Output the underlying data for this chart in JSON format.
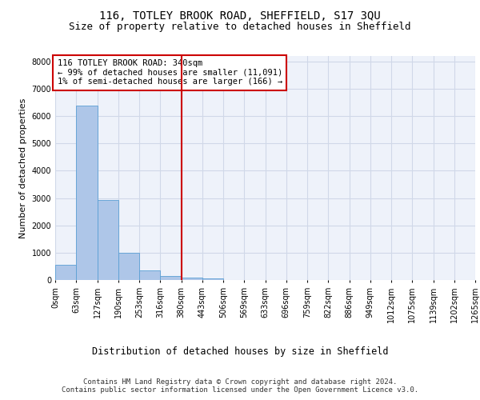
{
  "title": "116, TOTLEY BROOK ROAD, SHEFFIELD, S17 3QU",
  "subtitle": "Size of property relative to detached houses in Sheffield",
  "xlabel": "Distribution of detached houses by size in Sheffield",
  "ylabel": "Number of detached properties",
  "bar_values": [
    560,
    6380,
    2920,
    990,
    360,
    160,
    100,
    70,
    0,
    0,
    0,
    0,
    0,
    0,
    0,
    0,
    0,
    0,
    0,
    0
  ],
  "bar_labels": [
    "0sqm",
    "63sqm",
    "127sqm",
    "190sqm",
    "253sqm",
    "316sqm",
    "380sqm",
    "443sqm",
    "506sqm",
    "569sqm",
    "633sqm",
    "696sqm",
    "759sqm",
    "822sqm",
    "886sqm",
    "949sqm",
    "1012sqm",
    "1075sqm",
    "1139sqm",
    "1202sqm",
    "1265sqm"
  ],
  "bar_color": "#aec6e8",
  "bar_edge_color": "#5a9fd4",
  "vline_x": 5.5,
  "vline_color": "#cc0000",
  "annotation_text": "116 TOTLEY BROOK ROAD: 340sqm\n← 99% of detached houses are smaller (11,091)\n1% of semi-detached houses are larger (166) →",
  "annotation_box_edge": "#cc0000",
  "ylim": [
    0,
    8200
  ],
  "yticks": [
    0,
    1000,
    2000,
    3000,
    4000,
    5000,
    6000,
    7000,
    8000
  ],
  "grid_color": "#d0d8e8",
  "background_color": "#eef2fa",
  "footer_text": "Contains HM Land Registry data © Crown copyright and database right 2024.\nContains public sector information licensed under the Open Government Licence v3.0.",
  "title_fontsize": 10,
  "subtitle_fontsize": 9,
  "xlabel_fontsize": 8.5,
  "ylabel_fontsize": 8,
  "tick_fontsize": 7,
  "annotation_fontsize": 7.5,
  "footer_fontsize": 6.5
}
